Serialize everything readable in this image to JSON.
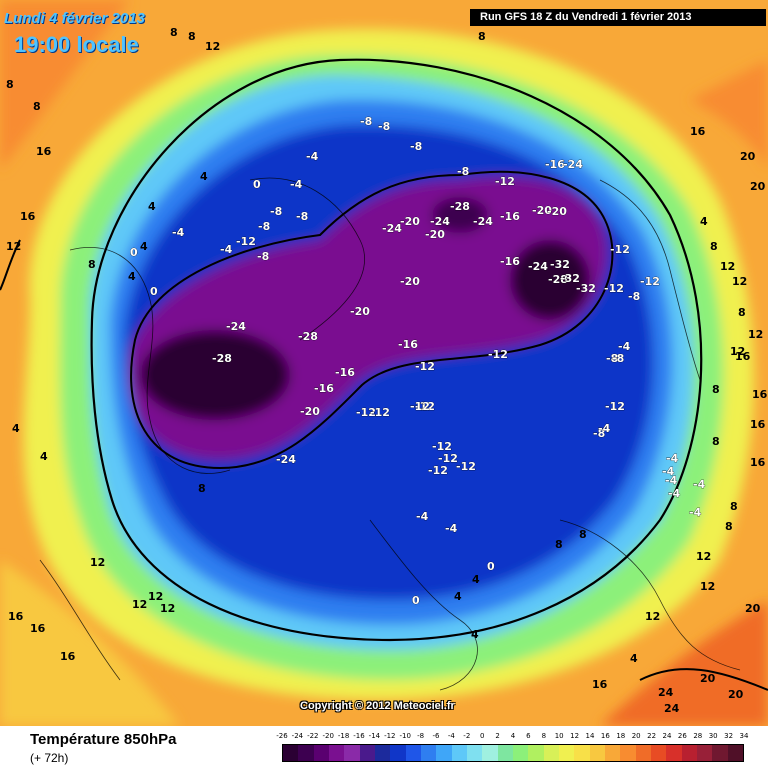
{
  "header": {
    "date": "Lundi 4 février 2013",
    "time": "19:00 locale",
    "run": "Run GFS 18 Z du Vendredi 1 février 2013"
  },
  "copyright": "Copyright © 2012 Meteociel.fr",
  "footer": {
    "title": "Température 850hPa",
    "subtitle": "(+ 72h)"
  },
  "legend": {
    "ticks": [
      "-26",
      "-24",
      "-22",
      "-20",
      "-18",
      "-16",
      "-14",
      "-12",
      "-10",
      "-8",
      "-6",
      "-4",
      "-2",
      "0",
      "2",
      "4",
      "6",
      "8",
      "10",
      "12",
      "14",
      "16",
      "18",
      "20",
      "22",
      "24",
      "26",
      "28",
      "30",
      "32",
      "34"
    ],
    "colors": [
      "#2b0033",
      "#3d0050",
      "#5a0070",
      "#7a1090",
      "#8a2aa8",
      "#4a1a8c",
      "#1c2a9c",
      "#1036c8",
      "#1f56e8",
      "#2f7ef0",
      "#3fa6f8",
      "#5ec8f8",
      "#7fe0f0",
      "#9ff0e0",
      "#7ee6a0",
      "#8cf07a",
      "#b0f060",
      "#d8f058",
      "#f0f050",
      "#f8e048",
      "#f8c840",
      "#f8a838",
      "#f88c30",
      "#f06c28",
      "#e84c24",
      "#d8302a",
      "#b82030",
      "#982038",
      "#701830",
      "#501028"
    ]
  },
  "map_labels": [
    {
      "t": "8"
    },
    {
      "t": "8"
    },
    {
      "t": "12"
    },
    {
      "t": "8"
    },
    {
      "t": "8"
    },
    {
      "t": "16"
    },
    {
      "t": "16"
    },
    {
      "t": "12"
    },
    {
      "t": "16"
    },
    {
      "t": "20"
    },
    {
      "t": "20"
    },
    {
      "t": "4"
    },
    {
      "t": "-8"
    },
    {
      "t": "-8"
    },
    {
      "t": "8"
    },
    {
      "t": "-8"
    },
    {
      "t": "-4"
    },
    {
      "t": "4"
    },
    {
      "t": "0"
    },
    {
      "t": "-4"
    },
    {
      "t": "-4"
    },
    {
      "t": "-8"
    },
    {
      "t": "-8"
    },
    {
      "t": "-12"
    },
    {
      "t": "-16"
    },
    {
      "t": "-24"
    },
    {
      "t": "-12"
    },
    {
      "t": "-8"
    },
    {
      "t": "-20"
    },
    {
      "t": "-24"
    },
    {
      "t": "-28"
    },
    {
      "t": "-24"
    },
    {
      "t": "-20"
    },
    {
      "t": "-24"
    },
    {
      "t": "-16"
    },
    {
      "t": "-20"
    },
    {
      "t": "-20"
    },
    {
      "t": "-12"
    },
    {
      "t": "-8"
    },
    {
      "t": "-8"
    },
    {
      "t": "-4"
    },
    {
      "t": "-8"
    },
    {
      "t": "-12"
    },
    {
      "t": "-4"
    },
    {
      "t": "-8"
    },
    {
      "t": "0"
    },
    {
      "t": "4"
    },
    {
      "t": "-20"
    },
    {
      "t": "-16"
    },
    {
      "t": "-24"
    },
    {
      "t": "-32"
    },
    {
      "t": "-28"
    },
    {
      "t": "-32"
    },
    {
      "t": "-32"
    },
    {
      "t": "-12"
    },
    {
      "t": "-12"
    },
    {
      "t": "-8"
    },
    {
      "t": "-24"
    },
    {
      "t": "-28"
    },
    {
      "t": "-28"
    },
    {
      "t": "-20"
    },
    {
      "t": "-16"
    },
    {
      "t": "-16"
    },
    {
      "t": "-16"
    },
    {
      "t": "-20"
    },
    {
      "t": "-12"
    },
    {
      "t": "-12"
    },
    {
      "t": "-12"
    },
    {
      "t": "-12"
    },
    {
      "t": "-12"
    },
    {
      "t": "-8"
    },
    {
      "t": "-4"
    },
    {
      "t": "-4"
    },
    {
      "t": "-12"
    },
    {
      "t": "-12"
    },
    {
      "t": "-12"
    },
    {
      "t": "-12"
    },
    {
      "t": "-12"
    },
    {
      "t": "-24"
    },
    {
      "t": "-4"
    },
    {
      "t": "-4"
    },
    {
      "t": "-4"
    },
    {
      "t": "-4"
    },
    {
      "t": "-4"
    },
    {
      "t": "-4"
    },
    {
      "t": "-4"
    },
    {
      "t": "0"
    },
    {
      "t": "4"
    },
    {
      "t": "0"
    },
    {
      "t": "4"
    },
    {
      "t": "4"
    },
    {
      "t": "4"
    },
    {
      "t": "8"
    },
    {
      "t": "8"
    },
    {
      "t": "12"
    },
    {
      "t": "12"
    },
    {
      "t": "12"
    },
    {
      "t": "16"
    },
    {
      "t": "16"
    },
    {
      "t": "16"
    },
    {
      "t": "16"
    },
    {
      "t": "16"
    },
    {
      "t": "20"
    },
    {
      "t": "20"
    },
    {
      "t": "24"
    },
    {
      "t": "24"
    },
    {
      "t": "20"
    },
    {
      "t": "16"
    },
    {
      "t": "12"
    },
    {
      "t": "12"
    },
    {
      "t": "12"
    },
    {
      "t": "8"
    },
    {
      "t": "8"
    },
    {
      "t": "8"
    },
    {
      "t": "4"
    },
    {
      "t": "8"
    },
    {
      "t": "8"
    },
    {
      "t": "12"
    },
    {
      "t": "12"
    },
    {
      "t": "16"
    },
    {
      "t": "16"
    },
    {
      "t": "12"
    },
    {
      "t": "12"
    },
    {
      "t": "8"
    },
    {
      "t": "4"
    },
    {
      "t": "0"
    },
    {
      "t": "4"
    },
    {
      "t": "8"
    },
    {
      "t": "8"
    },
    {
      "t": "12"
    },
    {
      "t": "4"
    },
    {
      "t": "-4"
    }
  ]
}
